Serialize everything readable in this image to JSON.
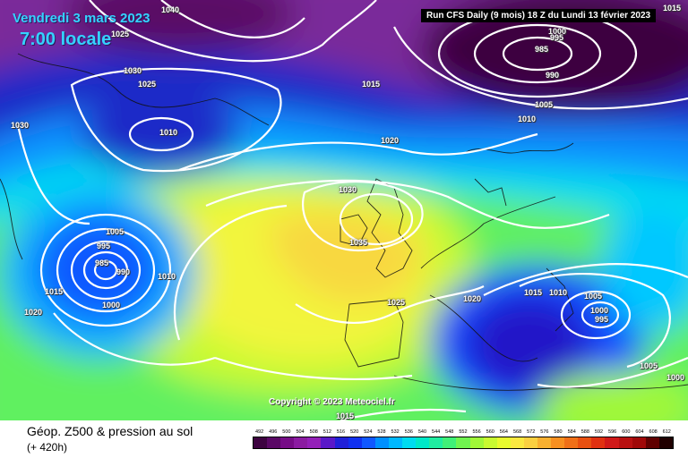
{
  "header": {
    "date": "Vendredi 3 mars 2023",
    "time": "7:00 locale",
    "run_info": "Run CFS Daily (9 mois) 18 Z du Lundi 13 février 2023"
  },
  "map": {
    "copyright": "Copyright © 2023 Meteociel.fr",
    "isobar_labels": [
      "1040",
      "1025",
      "1000",
      "995",
      "985",
      "990",
      "1005",
      "1015",
      "1030",
      "1025",
      "1015",
      "1030",
      "1010",
      "1010",
      "1020",
      "1030",
      "1035",
      "1005",
      "995",
      "985",
      "990",
      "1010",
      "1015",
      "1000",
      "1020",
      "1025",
      "1020",
      "1015",
      "1010",
      "1005",
      "1000",
      "995",
      "1005",
      "1000",
      "1015"
    ],
    "colors": {
      "low_violet": "#7a2a9a",
      "high_yellow": "#f2f53c",
      "isobar": "#ffffff"
    }
  },
  "footer": {
    "title": "Géop. Z500 & pression au sol",
    "subtitle": "(+ 420h)"
  },
  "legend": {
    "ticks": [
      "492",
      "496",
      "500",
      "504",
      "508",
      "512",
      "516",
      "520",
      "524",
      "528",
      "532",
      "536",
      "540",
      "544",
      "548",
      "552",
      "556",
      "560",
      "564",
      "568",
      "572",
      "576",
      "580",
      "584",
      "588",
      "592",
      "596",
      "600",
      "604",
      "608",
      "612"
    ],
    "colors": [
      "#3d0340",
      "#5a0865",
      "#760c86",
      "#8b1ba1",
      "#9420b8",
      "#5a18c8",
      "#2020d8",
      "#1030f0",
      "#1058ff",
      "#0090ff",
      "#00b8ff",
      "#00dcf0",
      "#00e8c8",
      "#20eca0",
      "#40f078",
      "#70f450",
      "#a0f838",
      "#c8fa30",
      "#e8fa2e",
      "#fae840",
      "#fad040",
      "#f8b030",
      "#f89020",
      "#f07018",
      "#e85010",
      "#e03010",
      "#d01818",
      "#b81010",
      "#a00808",
      "#600000",
      "#200000"
    ]
  }
}
